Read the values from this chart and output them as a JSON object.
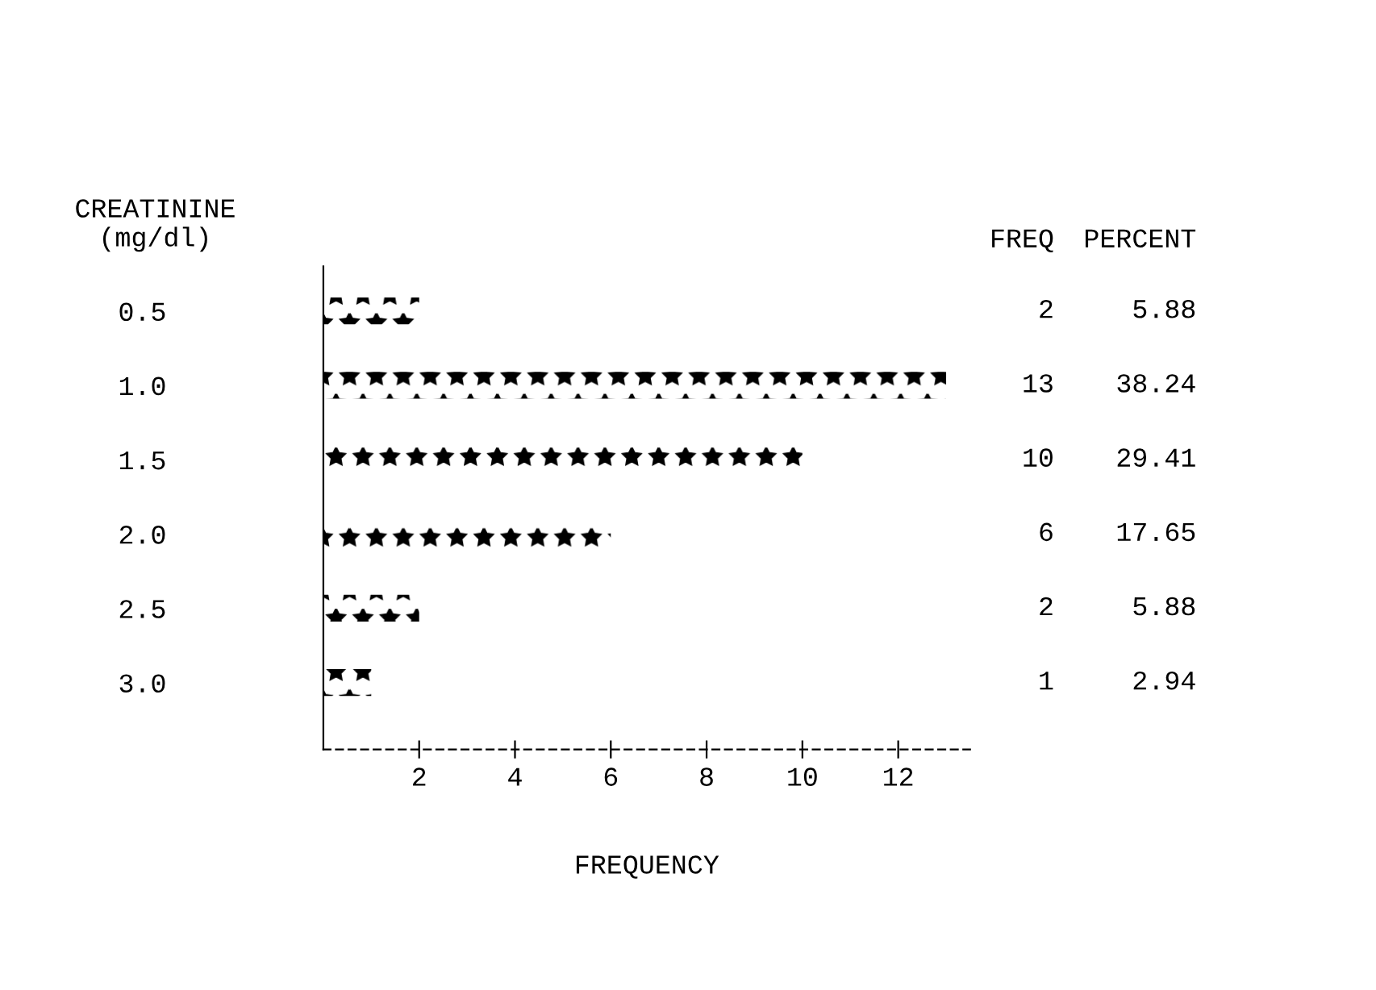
{
  "chart_data": {
    "type": "bar",
    "orientation": "horizontal",
    "ylabel": "CREATININE\n(mg/dl)",
    "xlabel": "FREQUENCY",
    "categories": [
      "0.5",
      "1.0",
      "1.5",
      "2.0",
      "2.5",
      "3.0"
    ],
    "values": [
      2,
      13,
      10,
      6,
      2,
      1
    ],
    "color": "#000000",
    "data_labels": true,
    "xlim": [
      0,
      13.5
    ],
    "xticks": [
      2,
      4,
      6,
      8,
      10,
      12
    ],
    "grid": false,
    "legend": false,
    "annotations": [
      {
        "text": "FREQ"
      },
      {
        "text": "PERCENT"
      },
      "5.88",
      "38.24",
      "29.41",
      "17.65",
      "5.88",
      "2.94"
    ]
  }
}
